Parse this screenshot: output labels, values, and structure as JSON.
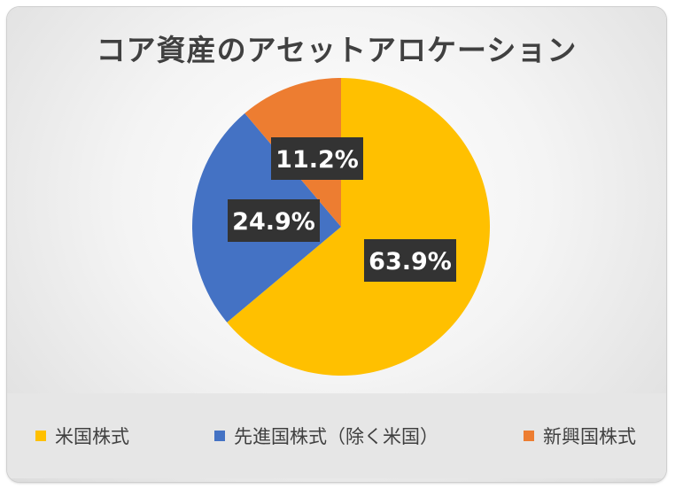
{
  "chart_data": {
    "type": "pie",
    "title": "コア資産のアセットアロケーション",
    "series": [
      {
        "name": "米国株式",
        "value": 63.9,
        "label": "63.9%",
        "color": "#FFC000"
      },
      {
        "name": "先進国株式（除く米国）",
        "value": 24.9,
        "label": "24.9%",
        "color": "#4472C4"
      },
      {
        "name": "新興国株式",
        "value": 11.2,
        "label": "11.2%",
        "color": "#ED7D31"
      }
    ],
    "legend": "bottom",
    "data_label_style": {
      "background": "#333333",
      "color": "#ffffff"
    }
  }
}
